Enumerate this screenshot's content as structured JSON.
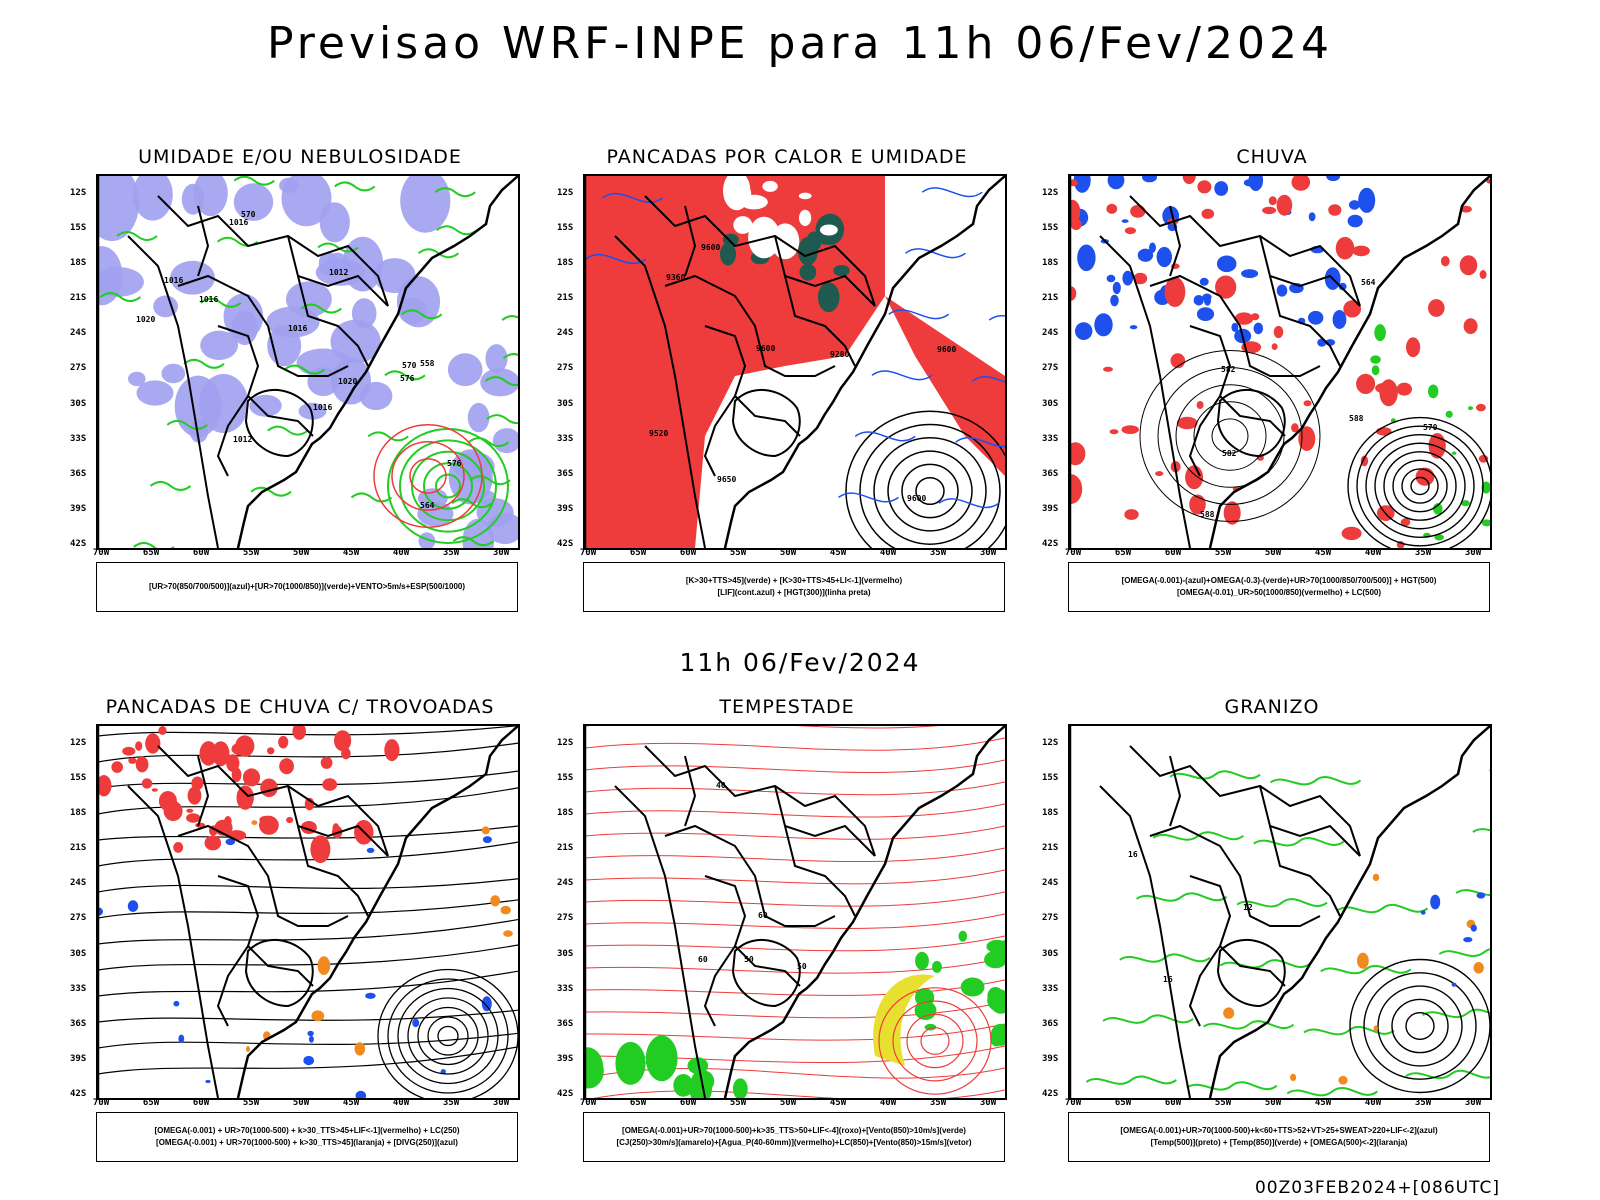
{
  "title": "Previsao WRF-INPE  para 11h 06/Fev/2024",
  "mid_title": "11h 06/Fev/2024",
  "footer": "00Z03FEB2024+[086UTC]",
  "lat_ticks": [
    "12S",
    "15S",
    "18S",
    "21S",
    "24S",
    "27S",
    "30S",
    "33S",
    "36S",
    "39S",
    "42S"
  ],
  "lon_ticks": [
    "70W",
    "65W",
    "60W",
    "55W",
    "50W",
    "45W",
    "40W",
    "35W",
    "30W"
  ],
  "panels": [
    {
      "id": "umidade",
      "title": "UMIDADE E/OU NEBULOSIDADE",
      "legend": [
        "[UR>70(850/700/500)](azul)+[UR>70(1000/850)](verde)+VENTO>5m/s+ESP(500/1000)"
      ],
      "contour_labels": [
        "1016",
        "1016",
        "1016",
        "1016",
        "1012",
        "1012",
        "1020",
        "1020",
        "576",
        "576",
        "570",
        "570",
        "564",
        "558",
        "1016"
      ]
    },
    {
      "id": "pancadas-calor",
      "title": "PANCADAS POR CALOR E UMIDADE",
      "legend": [
        "[K>30+TTS>45](verde) + [K>30+TTS>45+LI<-1](vermelho)",
        "[LIF](cont.azul) + [HGT(300)](linha preta)"
      ],
      "contour_labels": [
        "9600",
        "9600",
        "9600",
        "9600",
        "9520",
        "9360",
        "9280",
        "9650"
      ]
    },
    {
      "id": "chuva",
      "title": "CHUVA",
      "legend": [
        "[OMEGA(-0.001)-(azul)+OMEGA(-0.3)-(verde)+UR>70(1000/850/700/500)] + HGT(500)",
        "[OMEGA(-0.01)_UR>50(1000/850)(vermelho) + LC(500)"
      ],
      "contour_labels": [
        "588",
        "588",
        "582",
        "582",
        "570",
        "564"
      ]
    },
    {
      "id": "trovoadas",
      "title": "PANCADAS DE CHUVA C/ TROVOADAS",
      "legend": [
        "[OMEGA(-0.001) + UR>70(1000-500) + k>30_TTS>45+LIF<-1](vermelho) + LC(250)",
        "[OMEGA(-0.001) + UR>70(1000-500) + k>30_TTS>45](laranja) + [DIVG(250)](azul)"
      ],
      "contour_labels": []
    },
    {
      "id": "tempestade",
      "title": "TEMPESTADE",
      "legend": [
        "[OMEGA(-0.001)+UR>70(1000-500)+k>35_TTS>50+LIF<-4](roxo)+[Vento(850)>10m/s](verde)",
        "[CJ(250)>30m/s](amarelo)+[Agua_P(40-60mm)](vermelho)+LC(850)+[Vento(850)>15m/s](vetor)"
      ],
      "contour_labels": [
        "50",
        "40",
        "60",
        "60",
        "50"
      ]
    },
    {
      "id": "granizo",
      "title": "GRANIZO",
      "legend": [
        "[OMEGA(-0.001)+UR>70(1000-500)+k<60+TTS>52+VT>25+SWEAT>220+LIF<-2](azul)",
        "[Temp(500)](preto) + [Temp(850)](verde) + [OMEGA(500)<-2](laranja)"
      ],
      "contour_labels": [
        "12",
        "16",
        "16"
      ]
    }
  ],
  "colors": {
    "red": "#ee3b3b",
    "blue": "#1e50ee",
    "lavender": "#a0a0f0",
    "green": "#22cc22",
    "orange": "#f08a1e",
    "yellow": "#e8e030",
    "teal": "#1f5a50",
    "purple": "#a020c0"
  }
}
